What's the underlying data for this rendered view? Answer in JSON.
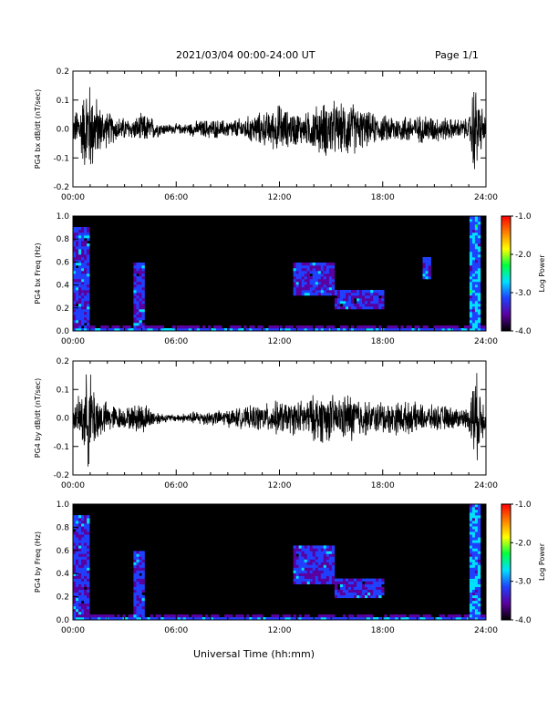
{
  "header": {
    "date_range": "2021/03/04  00:00-24:00 UT",
    "page": "Page 1/1"
  },
  "xlabel": "Universal Time (hh:mm)",
  "chart_data": [
    {
      "type": "line",
      "ylabel": "PG4 bx dB/dt (nT/sec)",
      "xlim": [
        0,
        24
      ],
      "ylim": [
        -0.2,
        0.2
      ],
      "x_ticks": [
        "00:00",
        "06:00",
        "12:00",
        "18:00",
        "24:00"
      ],
      "y_ticks": [
        "0.2",
        "0.1",
        "0.0",
        "-0.1",
        "-0.2"
      ],
      "series": [
        {
          "x": [
            0,
            0.5,
            0.9,
            1.2,
            1.6,
            2.0,
            2.5,
            3.0,
            3.5,
            4.0,
            4.5,
            5.0,
            5.5,
            6.0,
            6.5,
            7.0,
            7.5,
            8.0,
            8.5,
            9.0,
            9.5,
            10.0,
            10.5,
            11.0,
            11.5,
            12.0,
            12.5,
            13.0,
            13.5,
            14.0,
            14.5,
            15.0,
            15.5,
            16.0,
            16.5,
            17.0,
            17.5,
            18.0,
            18.5,
            19.0,
            19.5,
            20.0,
            20.5,
            21.0,
            21.5,
            22.0,
            22.5,
            23.0,
            23.3,
            23.6,
            24.0
          ],
          "amplitude": [
            0.05,
            0.12,
            0.2,
            0.15,
            0.09,
            0.07,
            0.05,
            0.045,
            0.04,
            0.06,
            0.05,
            0.03,
            0.02,
            0.02,
            0.02,
            0.03,
            0.035,
            0.04,
            0.035,
            0.035,
            0.04,
            0.045,
            0.06,
            0.065,
            0.07,
            0.1,
            0.07,
            0.07,
            0.06,
            0.09,
            0.1,
            0.12,
            0.09,
            0.12,
            0.09,
            0.07,
            0.06,
            0.05,
            0.06,
            0.05,
            0.06,
            0.05,
            0.06,
            0.05,
            0.05,
            0.04,
            0.04,
            0.04,
            0.2,
            0.12,
            0.04
          ]
        }
      ]
    },
    {
      "type": "heatmap",
      "ylabel": "PG4 bx Freq (Hz)",
      "xlim": [
        0,
        24
      ],
      "ylim": [
        0,
        1.0
      ],
      "x_ticks": [
        "00:00",
        "06:00",
        "12:00",
        "18:00",
        "24:00"
      ],
      "y_ticks": [
        "1.0",
        "0.8",
        "0.6",
        "0.4",
        "0.2",
        "0.0"
      ],
      "colorbar": {
        "label": "Log Power",
        "range": [
          -4.0,
          -1.0
        ],
        "ticks": [
          "-1.0",
          "-2.0",
          "-3.0",
          "-4.0"
        ],
        "colors": [
          "#000000",
          "#5a00a0",
          "#2040ff",
          "#00e0ff",
          "#00ff40",
          "#ffff00",
          "#ff8000",
          "#ff0000"
        ]
      },
      "features": [
        {
          "t": [
            0.0,
            1.0
          ],
          "f_max": 0.9,
          "level": -3.0
        },
        {
          "t": [
            3.6,
            4.2
          ],
          "f_max": 0.6,
          "level": -3.0
        },
        {
          "t": [
            12.8,
            15.2
          ],
          "f": [
            0.3,
            0.6
          ],
          "level": -3.0
        },
        {
          "t": [
            15.2,
            18.0
          ],
          "f": [
            0.2,
            0.35
          ],
          "level": -3.0
        },
        {
          "t": [
            20.3,
            20.8
          ],
          "f": [
            0.45,
            0.65
          ],
          "level": -2.8
        },
        {
          "t": [
            23.0,
            23.7
          ],
          "f_max": 1.0,
          "level": -2.7
        }
      ]
    },
    {
      "type": "line",
      "ylabel": "PG4 by dB/dt (nT/sec)",
      "xlim": [
        0,
        24
      ],
      "ylim": [
        -0.2,
        0.2
      ],
      "x_ticks": [
        "00:00",
        "06:00",
        "12:00",
        "18:00",
        "24:00"
      ],
      "y_ticks": [
        "0.2",
        "0.1",
        "0.0",
        "-0.1",
        "-0.2"
      ],
      "series": [
        {
          "x": [
            0,
            0.5,
            0.9,
            1.2,
            1.6,
            2.0,
            2.5,
            3.0,
            3.5,
            4.0,
            4.5,
            5.0,
            5.5,
            6.0,
            6.5,
            7.0,
            7.5,
            8.0,
            8.5,
            9.0,
            9.5,
            10.0,
            10.5,
            11.0,
            11.5,
            12.0,
            12.5,
            13.0,
            13.5,
            14.0,
            14.5,
            15.0,
            15.5,
            16.0,
            16.5,
            17.0,
            17.5,
            18.0,
            18.5,
            19.0,
            19.5,
            20.0,
            20.5,
            21.0,
            21.5,
            22.0,
            22.5,
            23.0,
            23.3,
            23.6,
            24.0
          ],
          "amplitude": [
            0.04,
            0.1,
            0.2,
            0.14,
            0.08,
            0.06,
            0.05,
            0.04,
            0.05,
            0.07,
            0.04,
            0.025,
            0.015,
            0.015,
            0.02,
            0.025,
            0.03,
            0.03,
            0.03,
            0.035,
            0.04,
            0.04,
            0.05,
            0.055,
            0.06,
            0.07,
            0.06,
            0.07,
            0.07,
            0.09,
            0.1,
            0.09,
            0.08,
            0.1,
            0.09,
            0.07,
            0.06,
            0.07,
            0.06,
            0.07,
            0.06,
            0.06,
            0.05,
            0.05,
            0.05,
            0.045,
            0.04,
            0.04,
            0.2,
            0.14,
            0.04
          ]
        }
      ]
    },
    {
      "type": "heatmap",
      "ylabel": "PG4 by Freq (Hz)",
      "xlim": [
        0,
        24
      ],
      "ylim": [
        0,
        1.0
      ],
      "x_ticks": [
        "00:00",
        "06:00",
        "12:00",
        "18:00",
        "24:00"
      ],
      "y_ticks": [
        "1.0",
        "0.8",
        "0.6",
        "0.4",
        "0.2",
        "0.0"
      ],
      "colorbar": {
        "label": "Log Power",
        "range": [
          -4.0,
          -1.0
        ],
        "ticks": [
          "-1.0",
          "-2.0",
          "-3.0",
          "-4.0"
        ],
        "colors": [
          "#000000",
          "#5a00a0",
          "#2040ff",
          "#00e0ff",
          "#00ff40",
          "#ffff00",
          "#ff8000",
          "#ff0000"
        ]
      },
      "features": [
        {
          "t": [
            0.0,
            1.0
          ],
          "f_max": 0.9,
          "level": -3.0
        },
        {
          "t": [
            3.6,
            4.2
          ],
          "f_max": 0.6,
          "level": -3.0
        },
        {
          "t": [
            12.8,
            15.2
          ],
          "f": [
            0.3,
            0.65
          ],
          "level": -3.0
        },
        {
          "t": [
            15.2,
            18.0
          ],
          "f": [
            0.2,
            0.35
          ],
          "level": -3.0
        },
        {
          "t": [
            23.0,
            23.7
          ],
          "f_max": 1.0,
          "level": -2.7
        }
      ]
    }
  ]
}
